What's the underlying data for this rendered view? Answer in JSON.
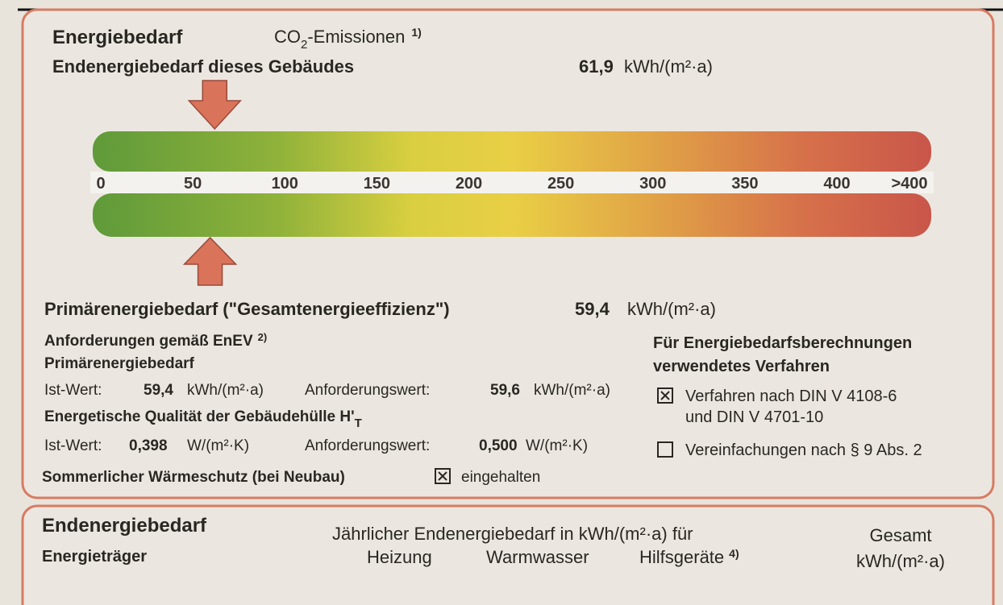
{
  "header": {
    "title": "Energiebedarf",
    "co2": {
      "prefix": "CO",
      "sub": "2",
      "suffix": "-Emissionen",
      "note": "1)"
    }
  },
  "end_energy": {
    "label": "Endenergiebedarf dieses Gebäudes",
    "value": {
      "value": 61.9,
      "label": "61,9"
    },
    "unit": "kWh/(m²·a)"
  },
  "scale": {
    "range": [
      0,
      400
    ],
    "ticks": [
      0,
      50,
      100,
      150,
      200,
      250,
      300,
      350,
      400
    ],
    "overflow_label": ">400"
  },
  "primary_energy": {
    "label": "Primärenergiebedarf (\"Gesamtenergieeffizienz\")",
    "value": {
      "value": 59.4,
      "label": "59,4"
    },
    "unit": "kWh/(m²·a)"
  },
  "requirements": {
    "title": {
      "text": "Anforderungen gemäß EnEV",
      "note": "2)"
    },
    "primary": {
      "heading": "Primärenergiebedarf",
      "actual_label": "Ist-Wert:",
      "actual_value": "59,4",
      "actual_unit": "kWh/(m²·a)",
      "required_label": "Anforderungswert:",
      "required_value": "59,6",
      "required_unit": "kWh/(m²·a)"
    },
    "envelope": {
      "heading": "Energetische Qualität der Gebäudehülle H'",
      "heading_sub": "T",
      "actual_label": "Ist-Wert:",
      "actual_value": "0,398",
      "actual_unit": "W/(m²·K)",
      "required_label": "Anforderungswert:",
      "required_value": "0,500",
      "required_unit": "W/(m²·K)"
    },
    "summer": {
      "label": "Sommerlicher Wärmeschutz (bei Neubau)",
      "checked": true,
      "status": "eingehalten"
    }
  },
  "method": {
    "heading": [
      "Für Energiebedarfsberechnungen",
      "verwendetes Verfahren"
    ],
    "options": [
      {
        "lines": [
          "Verfahren nach DIN V 4108-6",
          "und DIN V 4701-10"
        ],
        "checked": true
      },
      {
        "lines": [
          "Vereinfachungen nach § 9 Abs. 2"
        ],
        "checked": false
      }
    ]
  },
  "table": {
    "title": "Endenergiebedarf",
    "subtitle": "Energieträger",
    "group_header": "Jährlicher Endenergiebedarf in kWh/(m²·a) für",
    "columns": [
      "Heizung",
      "Warmwasser",
      {
        "text": "Hilfsgeräte",
        "note": "4)"
      }
    ],
    "total": [
      "Gesamt",
      "kWh/(m²·a)"
    ]
  }
}
